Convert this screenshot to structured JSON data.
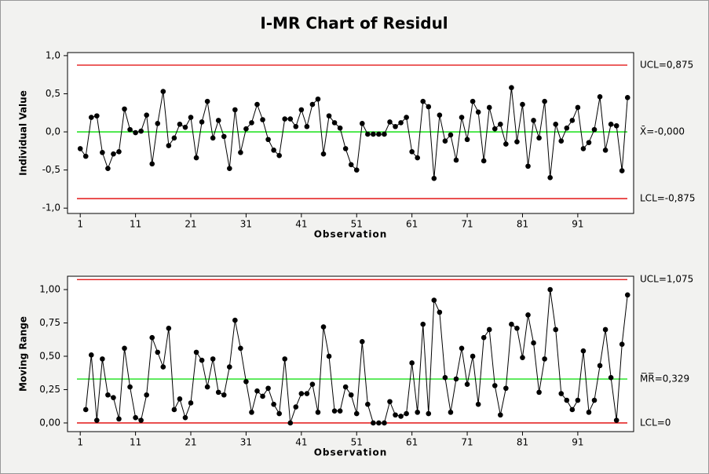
{
  "title": "I-MR Chart of Residul",
  "chart_data": [
    {
      "type": "line",
      "ylabel": "Individual Value",
      "xlabel": "Observation",
      "color": "#000000",
      "x": [
        1,
        2,
        3,
        4,
        5,
        6,
        7,
        8,
        9,
        10,
        11,
        12,
        13,
        14,
        15,
        16,
        17,
        18,
        19,
        20,
        21,
        22,
        23,
        24,
        25,
        26,
        27,
        28,
        29,
        30,
        31,
        32,
        33,
        34,
        35,
        36,
        37,
        38,
        39,
        40,
        41,
        42,
        43,
        44,
        45,
        46,
        47,
        48,
        49,
        50,
        51,
        52,
        53,
        54,
        55,
        56,
        57,
        58,
        59,
        60,
        61,
        62,
        63,
        64,
        65,
        66,
        67,
        68,
        69,
        70,
        71,
        72,
        73,
        74,
        75,
        76,
        77,
        78,
        79,
        80,
        81,
        82,
        83,
        84,
        85,
        86,
        87,
        88,
        89,
        90,
        91,
        92,
        93,
        94,
        95,
        96,
        97,
        98,
        99,
        100
      ],
      "values": [
        -0.22,
        -0.32,
        0.19,
        0.21,
        -0.27,
        -0.48,
        -0.29,
        -0.26,
        0.3,
        0.03,
        -0.01,
        0.01,
        0.22,
        -0.42,
        0.11,
        0.53,
        -0.18,
        -0.08,
        0.1,
        0.06,
        0.19,
        -0.34,
        0.13,
        0.4,
        -0.08,
        0.15,
        -0.06,
        -0.48,
        0.29,
        -0.27,
        0.04,
        0.12,
        0.36,
        0.16,
        -0.1,
        -0.24,
        -0.31,
        0.17,
        0.17,
        0.07,
        0.29,
        0.07,
        0.36,
        0.43,
        -0.29,
        0.21,
        0.12,
        0.05,
        -0.22,
        -0.43,
        -0.5,
        0.11,
        -0.03,
        -0.03,
        -0.03,
        -0.03,
        0.13,
        0.07,
        0.12,
        0.19,
        -0.26,
        -0.34,
        0.4,
        0.33,
        -0.61,
        0.22,
        -0.12,
        -0.04,
        -0.37,
        0.19,
        -0.1,
        0.4,
        0.26,
        -0.38,
        0.32,
        0.04,
        0.1,
        -0.16,
        0.58,
        -0.13,
        0.36,
        -0.45,
        0.15,
        -0.08,
        0.4,
        -0.6,
        0.1,
        -0.12,
        0.05,
        0.15,
        0.32,
        -0.22,
        -0.14,
        0.03,
        0.46,
        -0.24,
        0.1,
        0.08,
        -0.51,
        0.45
      ],
      "xlim": [
        -1.3,
        101.1
      ],
      "xticks": [
        1,
        11,
        21,
        31,
        41,
        51,
        61,
        71,
        81,
        91
      ],
      "ylim": [
        -1.07,
        1.04
      ],
      "yticks": [
        {
          "value": 1.0,
          "label": "1,0"
        },
        {
          "value": 0.5,
          "label": "0,5"
        },
        {
          "value": 0.0,
          "label": "0,0"
        },
        {
          "value": -0.5,
          "label": "-0,5"
        },
        {
          "value": -1.0,
          "label": "-1,0"
        }
      ],
      "ref_lines": [
        {
          "value": 0.875,
          "label": "UCL=0,875",
          "color": "#e00000"
        },
        {
          "value": 0,
          "label": "X̄=-0,000",
          "color": "#00dd00"
        },
        {
          "value": -0.875,
          "label": "LCL=-0,875",
          "color": "#e00000"
        }
      ]
    },
    {
      "type": "line",
      "ylabel": "Moving Range",
      "xlabel": "Observation",
      "color": "#000000",
      "x": [
        2,
        3,
        4,
        5,
        6,
        7,
        8,
        9,
        10,
        11,
        12,
        13,
        14,
        15,
        16,
        17,
        18,
        19,
        20,
        21,
        22,
        23,
        24,
        25,
        26,
        27,
        28,
        29,
        30,
        31,
        32,
        33,
        34,
        35,
        36,
        37,
        38,
        39,
        40,
        41,
        42,
        43,
        44,
        45,
        46,
        47,
        48,
        49,
        50,
        51,
        52,
        53,
        54,
        55,
        56,
        57,
        58,
        59,
        60,
        61,
        62,
        63,
        64,
        65,
        66,
        67,
        68,
        69,
        70,
        71,
        72,
        73,
        74,
        75,
        76,
        77,
        78,
        79,
        80,
        81,
        82,
        83,
        84,
        85,
        86,
        87,
        88,
        89,
        90,
        91,
        92,
        93,
        94,
        95,
        96,
        97,
        98,
        99,
        100
      ],
      "values": [
        0.1,
        0.51,
        0.02,
        0.48,
        0.21,
        0.19,
        0.03,
        0.56,
        0.27,
        0.04,
        0.02,
        0.21,
        0.64,
        0.53,
        0.42,
        0.71,
        0.1,
        0.18,
        0.04,
        0.15,
        0.53,
        0.47,
        0.27,
        0.48,
        0.23,
        0.21,
        0.42,
        0.77,
        0.56,
        0.31,
        0.08,
        0.24,
        0.2,
        0.26,
        0.14,
        0.07,
        0.48,
        0.0,
        0.12,
        0.22,
        0.22,
        0.29,
        0.08,
        0.72,
        0.5,
        0.09,
        0.09,
        0.27,
        0.21,
        0.07,
        0.61,
        0.14,
        0.0,
        0.0,
        0.0,
        0.16,
        0.06,
        0.05,
        0.07,
        0.45,
        0.08,
        0.74,
        0.07,
        0.92,
        0.83,
        0.34,
        0.08,
        0.33,
        0.56,
        0.29,
        0.5,
        0.14,
        0.64,
        0.7,
        0.28,
        0.06,
        0.26,
        0.74,
        0.71,
        0.49,
        0.81,
        0.6,
        0.23,
        0.48,
        1.0,
        0.7,
        0.22,
        0.17,
        0.1,
        0.17,
        0.54,
        0.08,
        0.17,
        0.43,
        0.7,
        0.34,
        0.02,
        0.59,
        0.96
      ],
      "xlim": [
        -1.3,
        101.1
      ],
      "xticks": [
        1,
        11,
        21,
        31,
        41,
        51,
        61,
        71,
        81,
        91
      ],
      "ylim": [
        -0.065,
        1.1
      ],
      "yticks": [
        {
          "value": 1.0,
          "label": "1,00"
        },
        {
          "value": 0.75,
          "label": "0,75"
        },
        {
          "value": 0.5,
          "label": "0,50"
        },
        {
          "value": 0.25,
          "label": "0,25"
        },
        {
          "value": 0.0,
          "label": "0,00"
        }
      ],
      "ref_lines": [
        {
          "value": 1.075,
          "label": "UCL=1,075",
          "color": "#e00000"
        },
        {
          "value": 0.329,
          "label": "M̅R̅=0,329",
          "color": "#00dd00"
        },
        {
          "value": 0,
          "label": "LCL=0",
          "color": "#e00000"
        }
      ]
    }
  ]
}
